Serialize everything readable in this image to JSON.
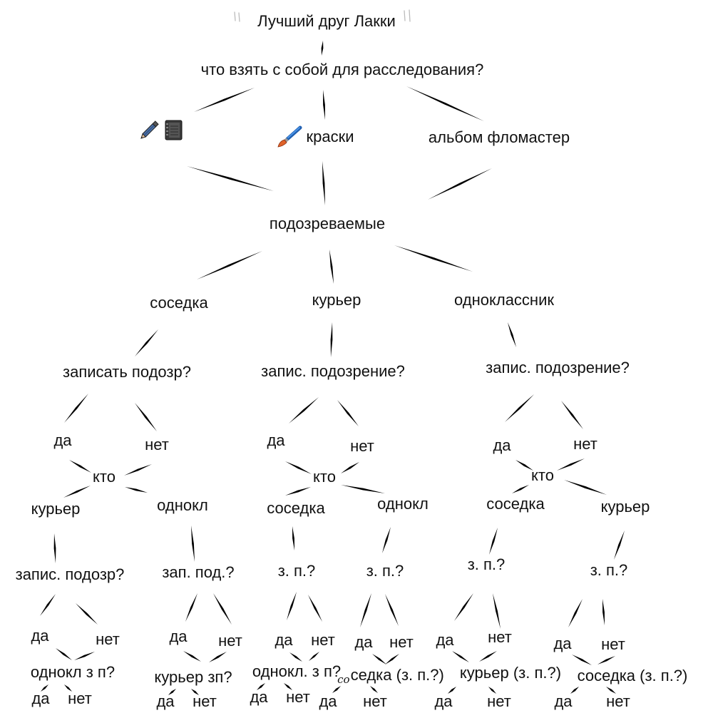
{
  "title": "Лучший друг Лакки",
  "question": "что взять с собой для расследования?",
  "items": {
    "option1_icons": [
      "pencil-icon",
      "notebook-icon"
    ],
    "option2": {
      "icon": "paintbrush-icon",
      "label": "краски"
    },
    "option3": {
      "label": "альбом фломастер"
    }
  },
  "suspects_title": "подозреваемые",
  "branches": [
    {
      "suspect": "соседка",
      "question": "записать подозр?",
      "yes": "да",
      "no": "нет",
      "who": "кто",
      "others": [
        {
          "name": "курьер",
          "question": "запис. подозр?",
          "yes": "да",
          "no": "нет",
          "next": "однокл з п?",
          "next_yes": "да",
          "next_no": "нет"
        },
        {
          "name": "однокл",
          "question": "зап. под.?",
          "yes": "да",
          "no": "нет",
          "next": "курьер зп?",
          "next_yes": "да",
          "next_no": "нет"
        }
      ]
    },
    {
      "suspect": "курьер",
      "question": "запис. подозрение?",
      "yes": "да",
      "no": "нет",
      "who": "кто",
      "others": [
        {
          "name": "соседка",
          "question": "з. п.?",
          "yes": "да",
          "no": "нет",
          "next": "однокл. з п?",
          "next_yes": "да",
          "next_no": "нет"
        },
        {
          "name": "однокл",
          "question": "з. п.?",
          "yes": "да",
          "no": "нет",
          "next_handwritten": "со",
          "next": "седка (з. п.?)",
          "next_yes": "да",
          "next_no": "нет"
        }
      ]
    },
    {
      "suspect": "одноклассник",
      "question": "запис. подозрение?",
      "yes": "да",
      "no": "нет",
      "who": "кто",
      "others": [
        {
          "name": "соседка",
          "question": "з. п.?",
          "yes": "да",
          "no": "нет",
          "next": "курьер (з. п.?)",
          "next_yes": "да",
          "next_no": "нет"
        },
        {
          "name": "курьер",
          "question": "з. п.?",
          "yes": "да",
          "no": "нет",
          "next": "соседка (з. п.?)",
          "next_yes": "да",
          "next_no": "нет"
        }
      ]
    }
  ],
  "colors": {
    "background": "#ffffff",
    "text": "#111111",
    "stroke": "#000000",
    "quote_marks": "#bbbbbb"
  }
}
